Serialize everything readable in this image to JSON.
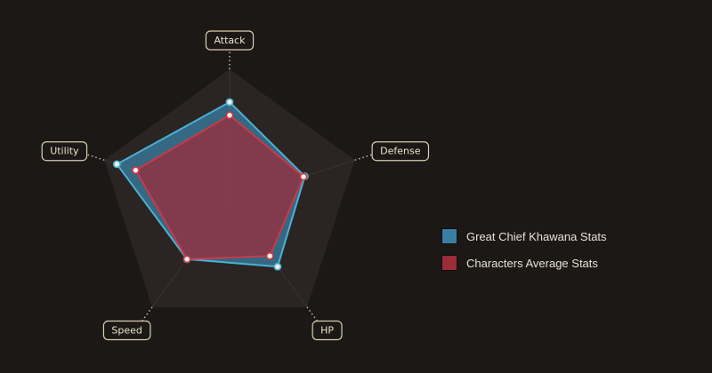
{
  "chart_data": {
    "type": "radar",
    "axes": [
      "Attack",
      "Defense",
      "HP",
      "Speed",
      "Utility"
    ],
    "range": [
      0,
      10
    ],
    "series": [
      {
        "name": "Great Chief Khawana Stats",
        "values": [
          7.5,
          6.0,
          6.2,
          5.5,
          9.0
        ],
        "color": "#3a7fa3",
        "stroke": "#4cb0d6"
      },
      {
        "name": "Characters Average Stats",
        "values": [
          6.5,
          5.9,
          5.2,
          5.5,
          7.5
        ],
        "color": "#9b2c3a",
        "stroke": "#c83a4a"
      }
    ],
    "background_levels": 1,
    "legend_position": "right"
  }
}
